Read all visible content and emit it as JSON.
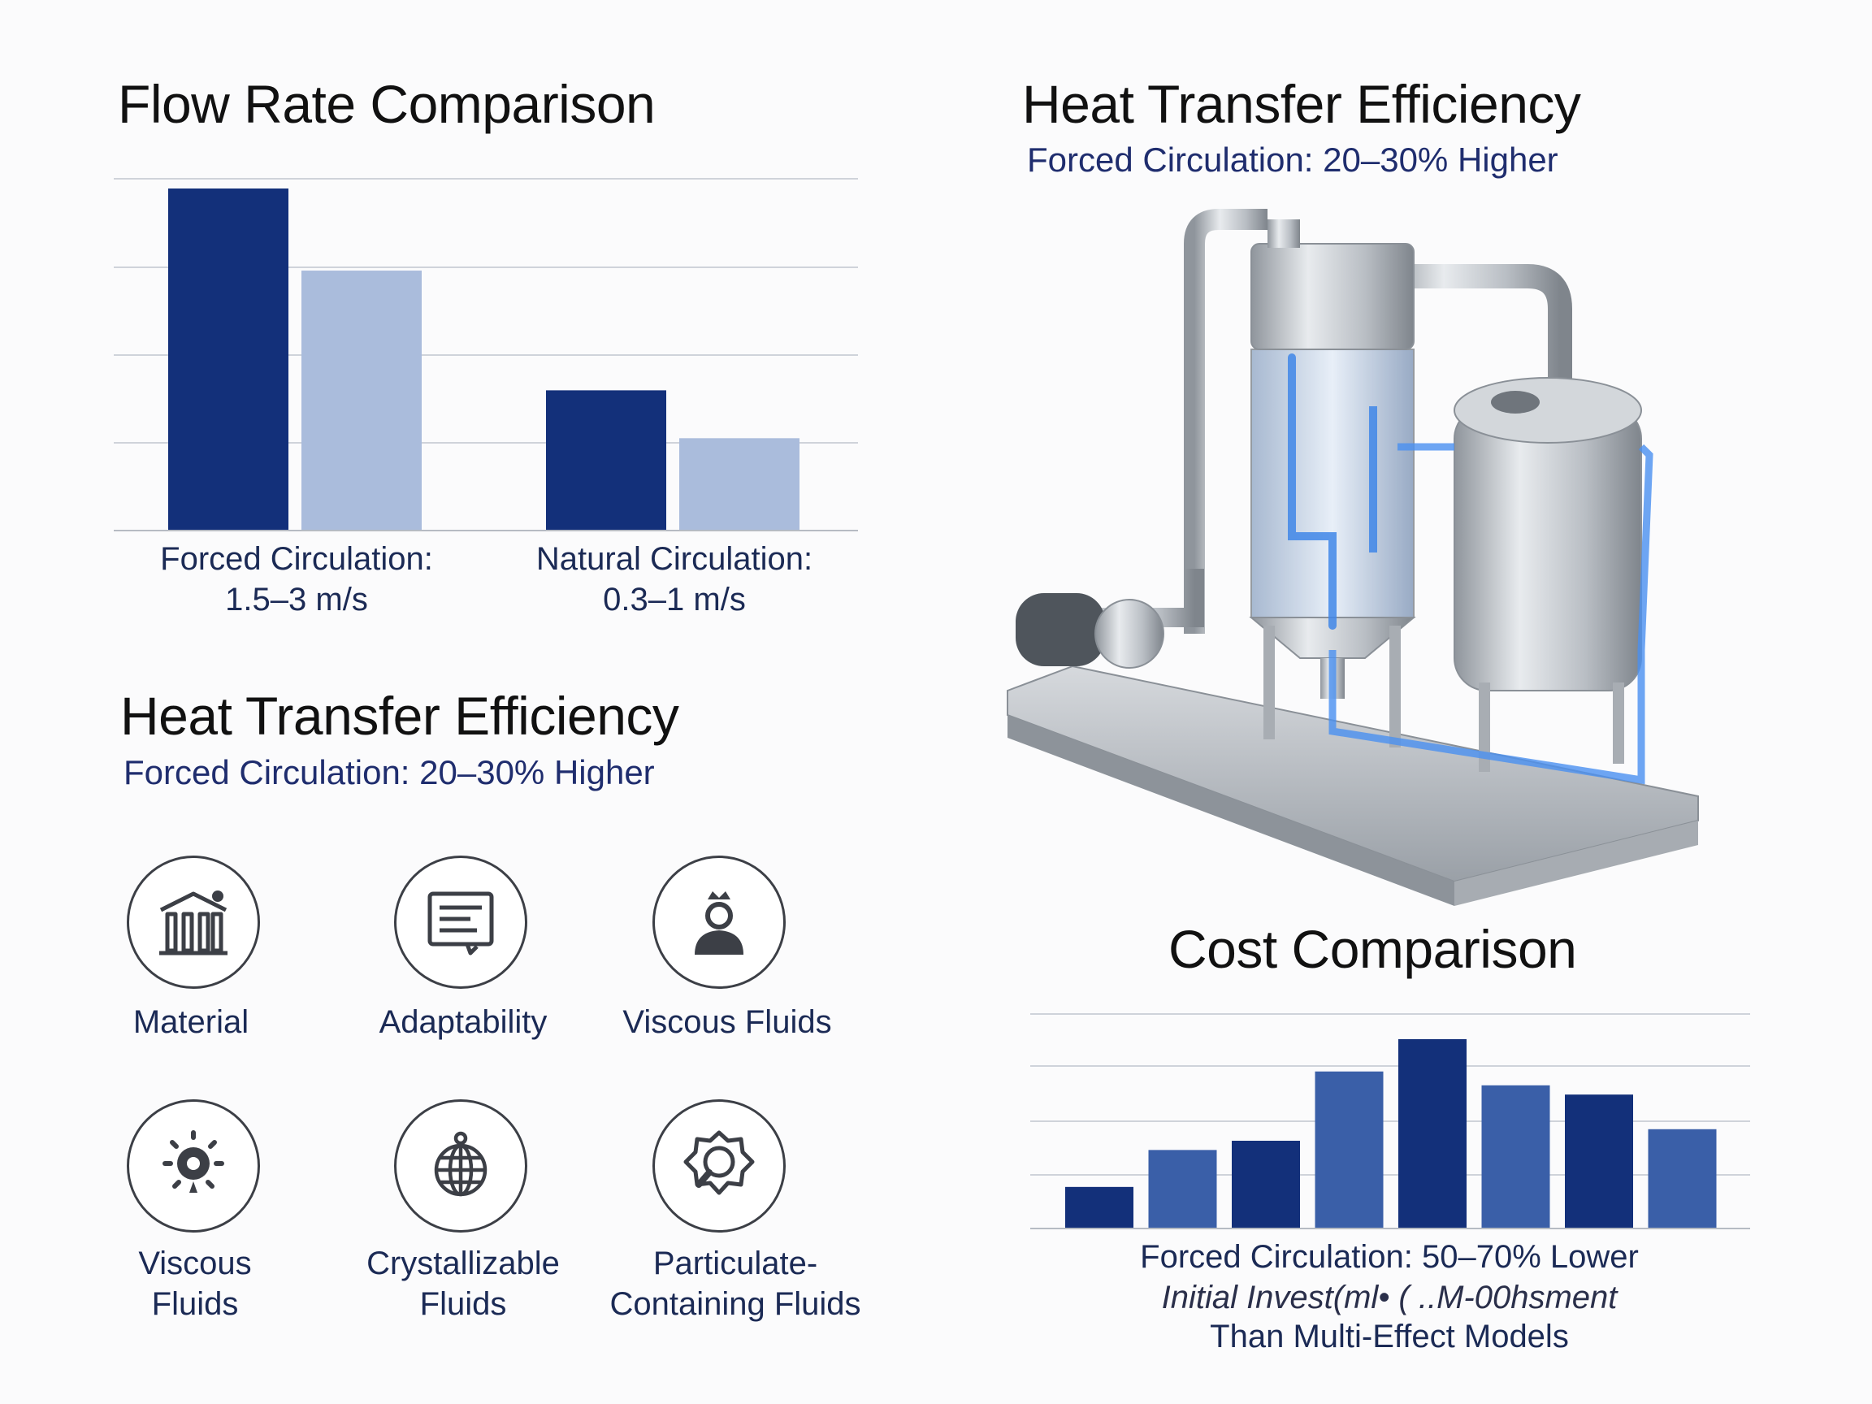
{
  "flow": {
    "title": "Flow Rate Comparison",
    "labels": [
      {
        "line1": "Forced Circulation:",
        "line2": "1.5–3 m/s"
      },
      {
        "line1": "Natural Circulation:",
        "line2": "0.3–1 m/s"
      }
    ]
  },
  "heat_left": {
    "title": "Heat Transfer Efficiency",
    "subtitle": "Forced Circulation: 20–30% Higher"
  },
  "heat_right": {
    "title": "Heat Transfer Efficiency",
    "subtitle": "Forced Circulation: 20–30% Higher"
  },
  "features": [
    {
      "label": "Material",
      "icon": "columns-icon"
    },
    {
      "label": "Adaptability",
      "icon": "document-icon"
    },
    {
      "label": "Viscous Fluids",
      "icon": "person-icon"
    },
    {
      "label": "Viscous\nFluids",
      "icon": "sun-drop-icon"
    },
    {
      "label": "Crystallizable\nFluids",
      "icon": "globe-icon"
    },
    {
      "label": "Particulate-\nContaining Fluids",
      "icon": "magnifier-badge-icon"
    }
  ],
  "cost": {
    "title": "Cost Comparison",
    "note_line1": "Forced Circulation: 50–70% Lower",
    "note_line2": "Initial Invest(ml• ( ..M-00hsment",
    "note_line3": "Than Multi-Effect Models"
  },
  "colors": {
    "navy": "#13307a",
    "light_blue": "#aabcdc",
    "mid_blue": "#3a5fa8",
    "grid": "#cfd3da"
  },
  "chart_data": [
    {
      "type": "bar",
      "title": "Flow Rate Comparison",
      "categories": [
        "Forced Circulation:\n1.5–3 m/s",
        "Natural Circulation:\n0.3–1 m/s"
      ],
      "series": [
        {
          "values": [
            100,
            41
          ]
        },
        {
          "values": [
            76,
            27
          ]
        }
      ],
      "ylim": [
        0,
        104
      ],
      "grid": true
    },
    {
      "type": "bar",
      "title": "Cost Comparison",
      "categories": [
        "",
        "",
        "",
        "",
        "",
        "",
        "",
        ""
      ],
      "values": [
        18,
        34,
        38,
        68,
        82,
        62,
        58,
        43
      ],
      "colors": [
        "navy",
        "mid",
        "navy",
        "mid",
        "navy",
        "mid",
        "navy",
        "mid"
      ],
      "ylim": [
        0,
        95
      ],
      "grid": true
    }
  ]
}
